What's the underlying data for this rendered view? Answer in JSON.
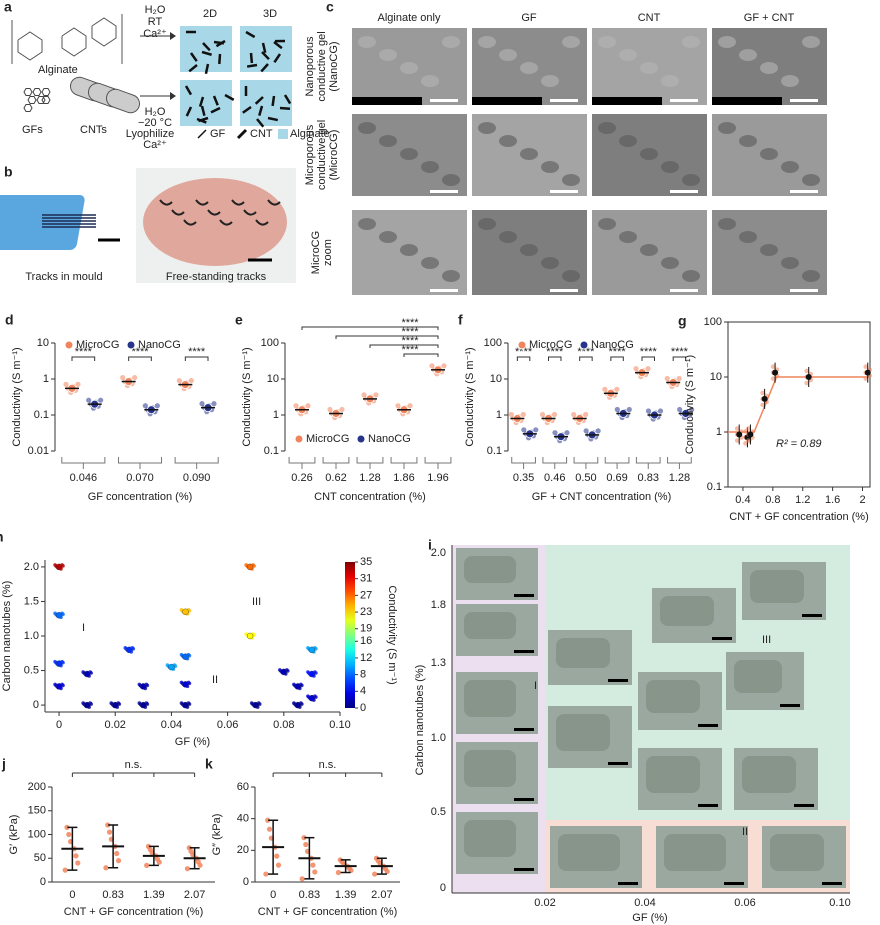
{
  "panels": {
    "a": {
      "label": "a",
      "alginate": "Alginate",
      "gfs": "GFs",
      "cnts": "CNTs",
      "top_arrow": [
        "H₂O",
        "RT",
        "Ca²⁺"
      ],
      "bottom_arrow": [
        "H₂O",
        "−20 °C",
        "Lyophilize",
        "Ca²⁺"
      ],
      "box_titles": [
        "2D",
        "3D"
      ],
      "legend": [
        "GF",
        "CNT",
        "Alginate"
      ]
    },
    "b": {
      "label": "b",
      "captions": [
        "Tracks in mould",
        "Free-standing tracks"
      ]
    },
    "c": {
      "label": "c",
      "columns": [
        "Alginate only",
        "GF",
        "CNT",
        "GF + CNT"
      ],
      "rows": [
        [
          "Nanoporous",
          "conductive gel",
          "(NanoCG)"
        ],
        [
          "Microporous",
          "conductive gel",
          "(MicroCG)"
        ],
        [
          "MicroCG",
          "zoom"
        ]
      ]
    },
    "i": {
      "label": "i",
      "xlabel": "GF (%)",
      "ylabel": "Carbon nanotubes (%)",
      "xtick_labels": [
        "0.02",
        "0.04",
        "0.06",
        "0.10"
      ],
      "ytick_labels": [
        "2.0",
        "1.8",
        "1.3",
        "1.0",
        "0.5",
        "0"
      ],
      "regions": [
        "I",
        "II",
        "III"
      ]
    }
  },
  "chart_data": [
    {
      "panel": "d",
      "type": "dot",
      "log_y": true,
      "xlabel": "GF concentration (%)",
      "ylabel": "Conductivity (S m⁻¹)",
      "categories": [
        "0.046",
        "0.070",
        "0.090"
      ],
      "series": [
        {
          "name": "MicroCG",
          "color": "#f0845c",
          "values": [
            0.55,
            0.85,
            0.7
          ]
        },
        {
          "name": "NanoCG",
          "color": "#27348b",
          "values": [
            0.2,
            0.14,
            0.16
          ]
        }
      ],
      "ylim": [
        0.01,
        10
      ],
      "yticks": [
        0.01,
        0.1,
        1,
        10
      ],
      "significance": [
        "****",
        "****",
        "****"
      ],
      "legend_position": "top"
    },
    {
      "panel": "e",
      "type": "dot",
      "log_y": true,
      "xlabel": "CNT concentration (%)",
      "ylabel": "Conductivity (S m⁻¹)",
      "categories": [
        "0.26",
        "0.62",
        "1.28",
        "1.86",
        "1.96"
      ],
      "series": [
        {
          "name": "MicroCG",
          "color": "#f0845c",
          "values": [
            1.4,
            1.1,
            2.8,
            1.4,
            18
          ]
        }
      ],
      "legend": [
        {
          "name": "MicroCG",
          "color": "#f0845c"
        },
        {
          "name": "NanoCG",
          "color": "#27348b"
        }
      ],
      "ylim": [
        0.1,
        100
      ],
      "yticks": [
        0.1,
        1,
        10,
        100
      ],
      "brackets": [
        "****",
        "****",
        "****",
        "****"
      ],
      "legend_position": "bottom"
    },
    {
      "panel": "f",
      "type": "dot",
      "log_y": true,
      "xlabel": "GF + CNT concentration (%)",
      "ylabel": "Conductivity (S m⁻¹)",
      "categories": [
        "0.35",
        "0.46",
        "0.50",
        "0.69",
        "0.83",
        "1.28"
      ],
      "series": [
        {
          "name": "MicroCG",
          "color": "#f0845c",
          "values": [
            0.8,
            0.8,
            0.8,
            4,
            15,
            8
          ]
        },
        {
          "name": "NanoCG",
          "color": "#27348b",
          "values": [
            0.3,
            0.25,
            0.28,
            1.1,
            1.0,
            1.1
          ]
        }
      ],
      "ylim": [
        0.1,
        100
      ],
      "yticks": [
        0.1,
        1,
        10,
        100
      ],
      "significance": [
        "****",
        "****",
        "****",
        "****",
        "****",
        "****"
      ],
      "legend_position": "top"
    },
    {
      "panel": "g",
      "type": "scatter_fit",
      "log_y": true,
      "xlabel": "CNT + GF concentration (%)",
      "ylabel": "Conductivity (S m⁻¹)",
      "x": [
        0.35,
        0.46,
        0.5,
        0.69,
        0.83,
        1.28,
        2.07
      ],
      "values": [
        0.9,
        0.8,
        0.9,
        4,
        12,
        10,
        12
      ],
      "color": "#f0845c",
      "fit": {
        "x": [
          0.2,
          0.55,
          0.85,
          2.1
        ],
        "values": [
          1,
          1,
          10,
          10
        ]
      },
      "xlim": [
        0.2,
        2.1
      ],
      "xticks": [
        0.4,
        0.8,
        1.2,
        1.6,
        2.0
      ],
      "ylim": [
        0.1,
        100
      ],
      "yticks": [
        0.1,
        1,
        10,
        100
      ],
      "annotation": "R² = 0.89"
    },
    {
      "panel": "h",
      "type": "scatter_color",
      "xlabel": "GF (%)",
      "ylabel": "Carbon nanotubes (%)",
      "colorbar_label": "Conductivity (S m⁻¹)",
      "x": [
        0,
        0,
        0,
        0,
        0.01,
        0.01,
        0.02,
        0.025,
        0.03,
        0.03,
        0.04,
        0.045,
        0.045,
        0.045,
        0.045,
        0.068,
        0.068,
        0.07,
        0.08,
        0.085,
        0.085,
        0.09,
        0.09,
        0.09
      ],
      "values": [
        2.0,
        1.3,
        0.6,
        0.27,
        0.45,
        0,
        0,
        0.8,
        0.27,
        0,
        0.55,
        1.35,
        0.7,
        0.3,
        0,
        2.0,
        1.0,
        0,
        0.48,
        0.27,
        0,
        0.8,
        0.45,
        0.1
      ],
      "color_values": [
        33,
        8,
        6,
        3,
        2,
        1,
        1,
        6,
        2,
        1,
        10,
        24,
        8,
        3,
        1,
        27,
        22,
        1,
        2,
        2,
        1,
        10,
        5,
        3
      ],
      "xlim": [
        -0.005,
        0.1
      ],
      "xticks": [
        0,
        0.02,
        0.04,
        0.06,
        0.08,
        {
          "value": 0.1,
          "label": "0.10"
        }
      ],
      "ylim": [
        -0.1,
        2.1
      ],
      "yticks": [
        0,
        0.5,
        {
          "value": 1,
          "label": "1.0"
        },
        1.5,
        {
          "value": 2,
          "label": "2.0"
        }
      ],
      "clim": [
        0,
        35
      ],
      "cticks": [
        0,
        4,
        8,
        12,
        16,
        19,
        23,
        27,
        31,
        35
      ],
      "colormap": "jet",
      "regions": [
        "I",
        "II",
        "III"
      ]
    },
    {
      "panel": "j",
      "type": "mean_sd",
      "xlabel": "CNT + GF concentration (%)",
      "ylabel": "G′ (kPa)",
      "categories": [
        "0",
        "0.83",
        "1.39",
        "2.07"
      ],
      "values": [
        70,
        75,
        55,
        50
      ],
      "errors": [
        45,
        45,
        20,
        22
      ],
      "color": "#f0845c",
      "ylim": [
        0,
        200
      ],
      "yticks": [
        0,
        50,
        100,
        150,
        200
      ],
      "annotation": "n.s."
    },
    {
      "panel": "k",
      "type": "mean_sd",
      "xlabel": "CNT + GF concentration (%)",
      "ylabel": "G″ (kPa)",
      "categories": [
        "0",
        "0.83",
        "1.39",
        "2.07"
      ],
      "values": [
        22,
        15,
        10,
        10
      ],
      "errors": [
        17,
        13,
        4,
        5
      ],
      "color": "#f0845c",
      "ylim": [
        0,
        60
      ],
      "yticks": [
        0,
        20,
        40,
        60
      ],
      "annotation": "n.s."
    }
  ]
}
